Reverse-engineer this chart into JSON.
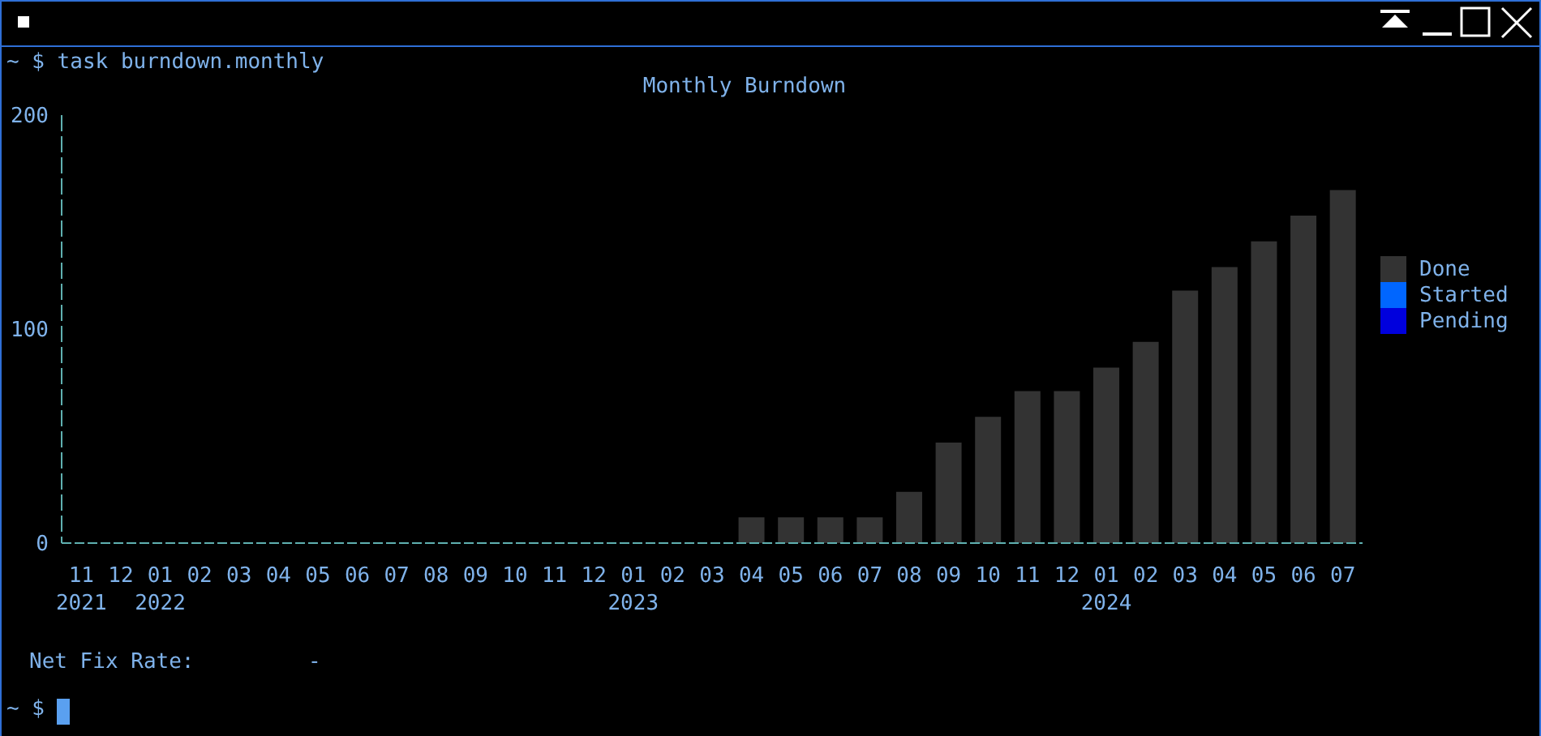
{
  "chart_data": {
    "type": "bar",
    "title": "Monthly Burndown",
    "categories": [
      "11\n2021",
      "12",
      "01\n2022",
      "02",
      "03",
      "04",
      "05",
      "06",
      "07",
      "08",
      "09",
      "10",
      "11",
      "12",
      "01\n2023",
      "02",
      "03",
      "04",
      "05",
      "06",
      "07",
      "08",
      "09",
      "10",
      "11",
      "12",
      "01\n2024",
      "02",
      "03",
      "04",
      "05",
      "06",
      "07"
    ],
    "series": [
      {
        "name": "Done",
        "color": "#333333",
        "values": [
          0,
          0,
          0,
          0,
          0,
          0,
          0,
          0,
          0,
          0,
          0,
          0,
          0,
          0,
          0,
          0,
          0,
          12,
          12,
          12,
          12,
          24,
          47,
          59,
          71,
          71,
          82,
          94,
          118,
          129,
          141,
          153,
          165
        ]
      },
      {
        "name": "Started",
        "color": "#0066ff",
        "values": [
          0,
          0,
          0,
          0,
          0,
          0,
          0,
          0,
          0,
          0,
          0,
          0,
          0,
          0,
          0,
          0,
          0,
          0,
          0,
          0,
          0,
          0,
          0,
          0,
          0,
          0,
          0,
          0,
          0,
          0,
          0,
          0,
          0
        ]
      },
      {
        "name": "Pending",
        "color": "#0000dd",
        "values": [
          0,
          0,
          0,
          0,
          0,
          0,
          0,
          0,
          0,
          0,
          0,
          0,
          0,
          0,
          0,
          0,
          0,
          0,
          0,
          0,
          0,
          0,
          0,
          0,
          0,
          0,
          0,
          0,
          0,
          0,
          0,
          0,
          0
        ]
      }
    ],
    "stacked": true,
    "ylim": [
      0,
      200
    ],
    "yticks": [
      0,
      100,
      200
    ],
    "legend": "right",
    "annotations": [
      "~ $ task burndown.monthly",
      "Net Fix Rate:",
      "-",
      "~ $"
    ]
  }
}
